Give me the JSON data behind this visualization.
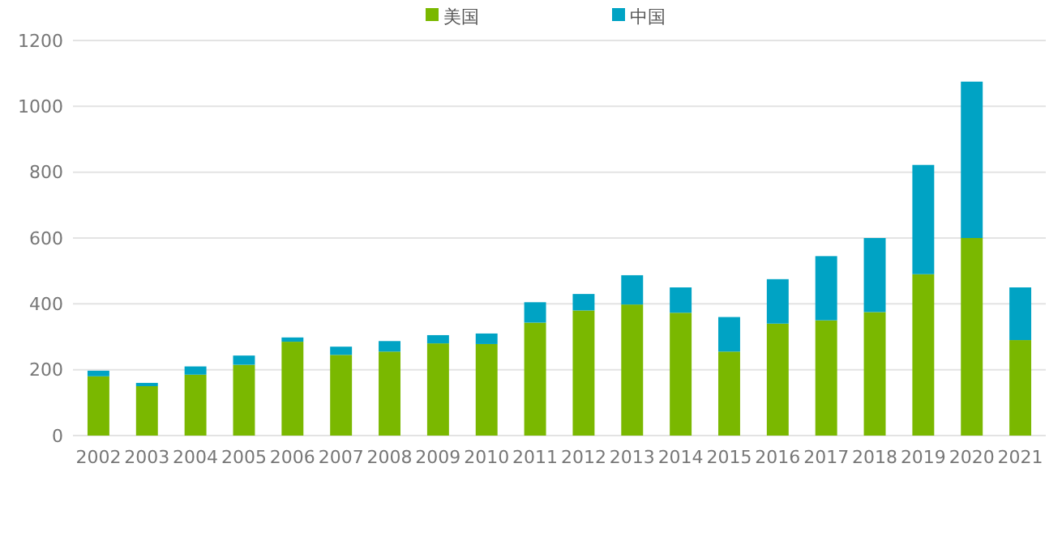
{
  "chart_data": {
    "type": "bar",
    "stacked": true,
    "categories": [
      "2002",
      "2003",
      "2004",
      "2005",
      "2006",
      "2007",
      "2008",
      "2009",
      "2010",
      "2011",
      "2012",
      "2013",
      "2014",
      "2015",
      "2016",
      "2017",
      "2018",
      "2019",
      "2020",
      "2021"
    ],
    "series": [
      {
        "name": "美国",
        "color": "#7ab800",
        "values": [
          180,
          150,
          185,
          215,
          285,
          245,
          255,
          280,
          278,
          343,
          380,
          398,
          373,
          255,
          340,
          350,
          375,
          490,
          600,
          290
        ]
      },
      {
        "name": "中国",
        "color": "#00a3c4",
        "values": [
          17,
          10,
          25,
          28,
          13,
          25,
          32,
          25,
          32,
          62,
          50,
          89,
          77,
          105,
          135,
          195,
          225,
          332,
          475,
          160
        ]
      }
    ],
    "ylim": [
      0,
      1200
    ],
    "yticks": [
      0,
      200,
      400,
      600,
      800,
      1000,
      1200
    ],
    "grid": "y",
    "legend": "top"
  }
}
